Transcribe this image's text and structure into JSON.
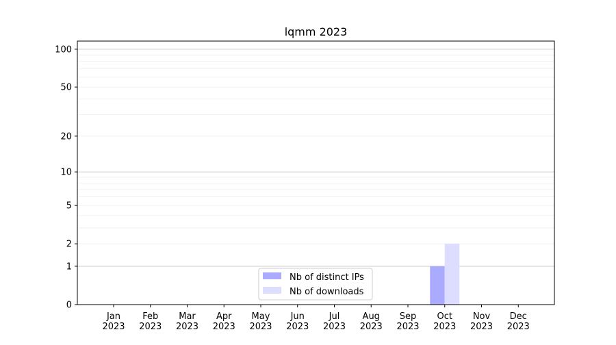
{
  "chart_data": {
    "type": "bar",
    "title": "lqmm 2023",
    "xlabel": "",
    "ylabel": "",
    "y_scale": "log(1+y)",
    "ylim": [
      0,
      116
    ],
    "y_ticks": [
      0,
      1,
      2,
      5,
      10,
      20,
      50,
      100
    ],
    "grid": true,
    "legend_position": "bottom-center",
    "categories": [
      "Jan\n2023",
      "Feb\n2023",
      "Mar\n2023",
      "Apr\n2023",
      "May\n2023",
      "Jun\n2023",
      "Jul\n2023",
      "Aug\n2023",
      "Sep\n2023",
      "Oct\n2023",
      "Nov\n2023",
      "Dec\n2023"
    ],
    "series": [
      {
        "name": "Nb of distinct IPs",
        "color": "#aaaaff",
        "values": [
          0,
          0,
          0,
          0,
          0,
          0,
          0,
          0,
          0,
          1,
          0,
          0
        ]
      },
      {
        "name": "Nb of downloads",
        "color": "#ddddff",
        "values": [
          0,
          0,
          0,
          0,
          0,
          0,
          0,
          0,
          0,
          2,
          0,
          0
        ]
      }
    ]
  }
}
